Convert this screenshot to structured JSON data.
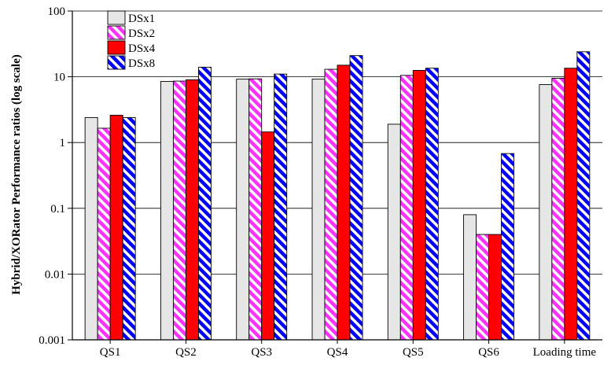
{
  "chart_data": {
    "type": "bar",
    "title": "",
    "xlabel": "",
    "ylabel": "Hybrid/XORator Performance ratios (log scale)",
    "yscale": "log",
    "ylim": [
      0.001,
      100
    ],
    "yticks": [
      0.001,
      0.01,
      0.1,
      1,
      10,
      100
    ],
    "ytick_labels": [
      "0.001",
      "0.01",
      "0.1",
      "1",
      "10",
      "100"
    ],
    "grid": "horizontal",
    "legend_position": "top-left",
    "categories": [
      "QS1",
      "QS2",
      "QS3",
      "QS4",
      "QS5",
      "QS6",
      "Loading time"
    ],
    "series": [
      {
        "name": "DSx1",
        "values": [
          2.4,
          8.5,
          9.2,
          9.2,
          1.9,
          0.08,
          7.6
        ],
        "fill": "#e6e6e6",
        "pattern": "solid"
      },
      {
        "name": "DSx2",
        "values": [
          1.65,
          8.6,
          9.3,
          13,
          10.5,
          0.04,
          9.5
        ],
        "fill": "#ff33ff",
        "pattern": "hatch"
      },
      {
        "name": "DSx4",
        "values": [
          2.6,
          9.0,
          1.45,
          15,
          12.5,
          0.04,
          13.5
        ],
        "fill": "#ff0000",
        "pattern": "solid"
      },
      {
        "name": "DSx8",
        "values": [
          2.4,
          14,
          11,
          21,
          13.5,
          0.68,
          24
        ],
        "fill": "#0000ff",
        "pattern": "hatch"
      }
    ]
  }
}
